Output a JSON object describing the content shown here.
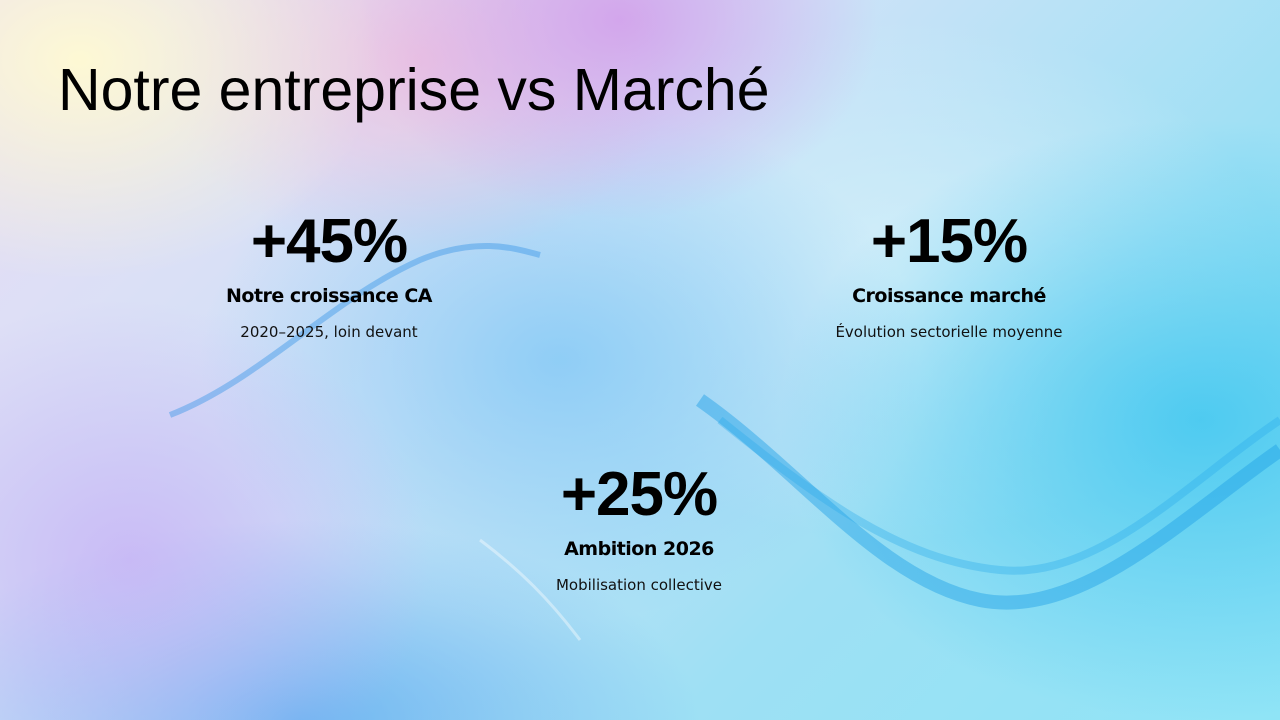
{
  "header": {
    "title": "Notre entreprise vs Marché"
  },
  "stats": [
    {
      "value": "+45%",
      "label": "Notre croissance CA",
      "description": "2020–2025, loin devant"
    },
    {
      "value": "+15%",
      "label": "Croissance marché",
      "description": "Évolution sectorielle moyenne"
    },
    {
      "value": "+25%",
      "label": "Ambition 2026",
      "description": "Mobilisation collective"
    }
  ]
}
